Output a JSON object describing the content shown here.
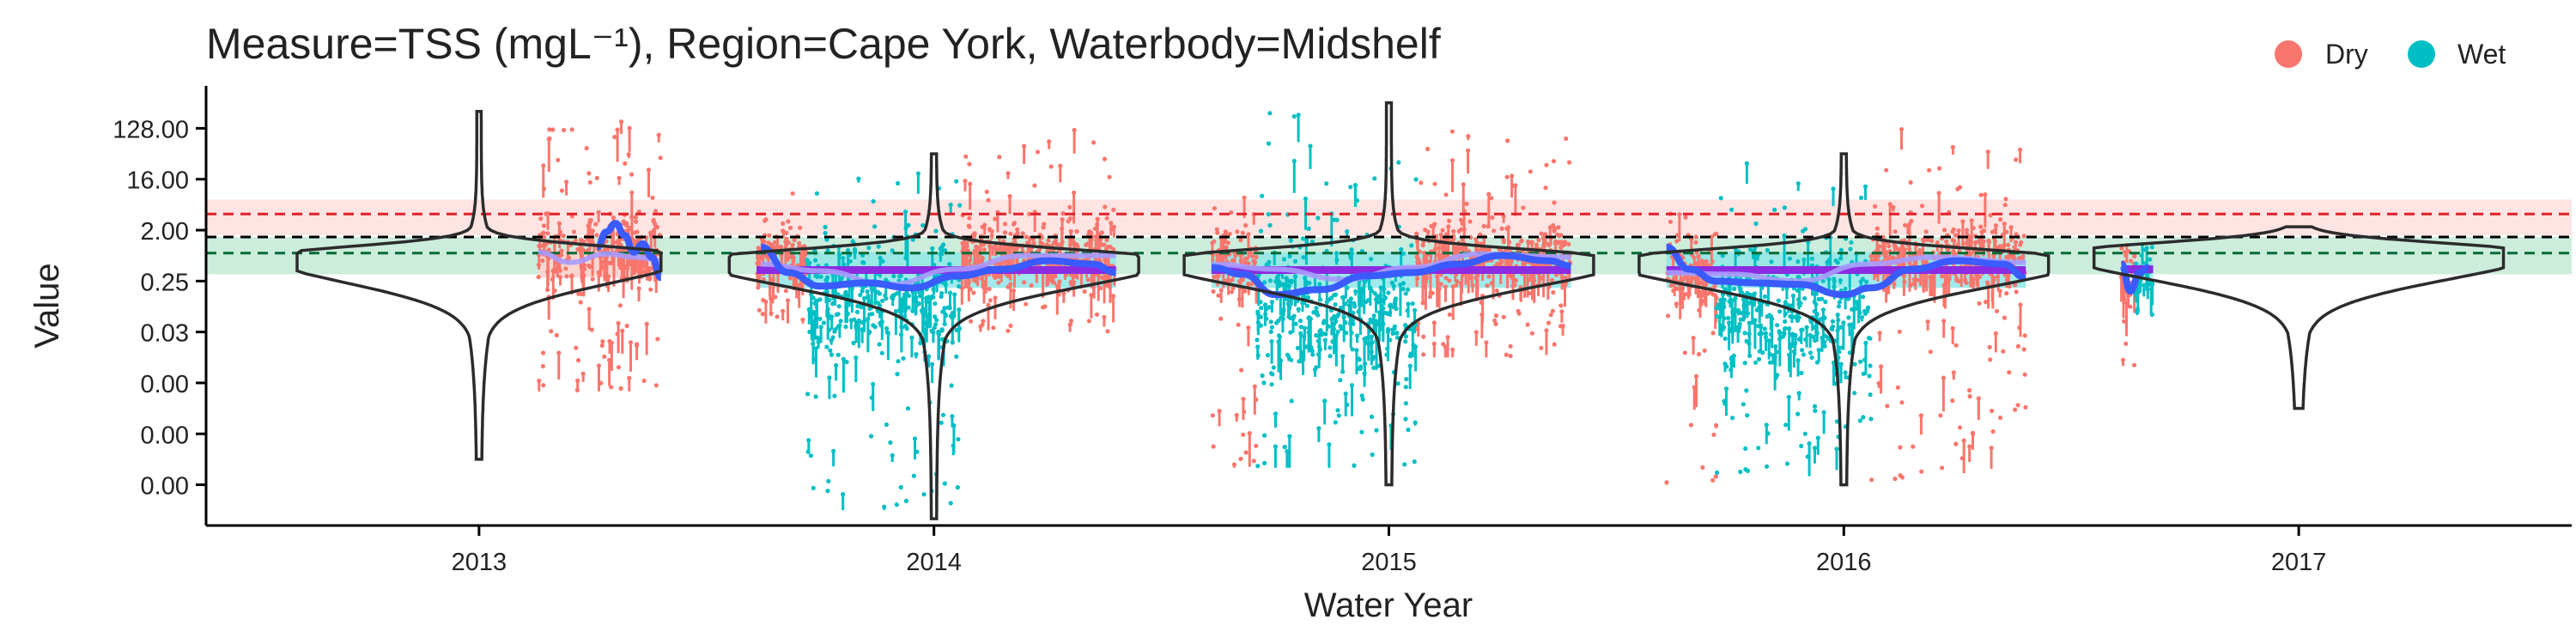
{
  "chart_data": {
    "type": "scatter",
    "title": "Measure=TSS (mgL⁻¹), Region=Cape York, Waterbody=Midshelf",
    "xlabel": "Water Year",
    "ylabel": "Value",
    "y_scale": "log2",
    "x_ticks": [
      "2013",
      "2014",
      "2015",
      "2016",
      "2017"
    ],
    "y_ticks": [
      "128.00",
      "16.00",
      "2.00",
      "0.25",
      "0.03",
      "0.00",
      "0.00",
      "0.00"
    ],
    "y_tick_log2": [
      7,
      4,
      1,
      -2,
      -5,
      -8,
      -11,
      -14
    ],
    "xlim": [
      2012.4,
      2017.6
    ],
    "ylim_log2": [
      -16.4,
      9.5
    ],
    "legend": {
      "position": "top-right",
      "entries": [
        {
          "label": "Dry",
          "color": "#F8766D"
        },
        {
          "label": "Wet",
          "color": "#00BFC4"
        }
      ]
    },
    "reference_bands": [
      {
        "color": "#F8766D",
        "line_value_log2": 1.95,
        "band_log2": [
          0.7,
          2.8
        ]
      },
      {
        "color": "#00A550",
        "line_value_log2": -0.35,
        "band_log2": [
          -1.6,
          0.6
        ]
      }
    ],
    "reference_line_black_log2": 0.6,
    "series": [
      {
        "name": "Dry",
        "color": "#F8766D",
        "clusters": [
          {
            "year": 2013,
            "x_from": 2013.13,
            "x_to": 2013.4,
            "center_log2": -0.2,
            "spread_log2": 1.6,
            "max_log2": 7.5,
            "min_log2": -8.5
          },
          {
            "year": 2014,
            "x_from": 2013.61,
            "x_to": 2013.72,
            "center_log2": -0.5,
            "spread_log2": 1.3,
            "max_log2": 3.5,
            "min_log2": -4.5
          },
          {
            "year": 2014,
            "x_from": 2014.06,
            "x_to": 2014.4,
            "center_log2": -0.3,
            "spread_log2": 1.6,
            "max_log2": 7.2,
            "min_log2": -5.0
          },
          {
            "year": 2015,
            "x_from": 2014.61,
            "x_to": 2014.71,
            "center_log2": -1.0,
            "spread_log2": 1.8,
            "max_log2": 3.0,
            "min_log2": -13.0
          },
          {
            "year": 2015,
            "x_from": 2015.06,
            "x_to": 2015.4,
            "center_log2": -0.4,
            "spread_log2": 1.6,
            "max_log2": 7.0,
            "min_log2": -6.5
          },
          {
            "year": 2016,
            "x_from": 2015.61,
            "x_to": 2015.72,
            "center_log2": -1.5,
            "spread_log2": 2.0,
            "max_log2": 2.0,
            "min_log2": -14.0
          },
          {
            "year": 2016,
            "x_from": 2016.06,
            "x_to": 2016.4,
            "center_log2": -0.5,
            "spread_log2": 1.6,
            "max_log2": 7.0,
            "min_log2": -14.0
          },
          {
            "year": 2017,
            "x_from": 2016.61,
            "x_to": 2016.64,
            "center_log2": -1.8,
            "spread_log2": 1.5,
            "max_log2": 0.5,
            "min_log2": -7.0
          }
        ]
      },
      {
        "name": "Wet",
        "color": "#00BFC4",
        "clusters": [
          {
            "year": 2014,
            "x_from": 2013.72,
            "x_to": 2014.06,
            "center_log2": -3.0,
            "spread_log2": 3.0,
            "max_log2": 4.5,
            "min_log2": -15.5
          },
          {
            "year": 2015,
            "x_from": 2014.71,
            "x_to": 2015.06,
            "center_log2": -3.5,
            "spread_log2": 3.2,
            "max_log2": 8.0,
            "min_log2": -13.0
          },
          {
            "year": 2016,
            "x_from": 2015.72,
            "x_to": 2016.06,
            "center_log2": -3.5,
            "spread_log2": 3.0,
            "max_log2": 5.0,
            "min_log2": -13.5
          },
          {
            "year": 2017,
            "x_from": 2016.64,
            "x_to": 2016.68,
            "center_log2": -1.5,
            "spread_log2": 1.2,
            "max_log2": 0.5,
            "min_log2": -4.0
          }
        ]
      }
    ],
    "year_boxes": [
      {
        "year": 2013,
        "x_from": 2013.13,
        "x_to": 2013.4,
        "median_log2": -1.0,
        "q1_log2": -1.8,
        "q3_log2": -0.2,
        "fill": "#FFD1CC"
      },
      {
        "year": 2014,
        "x_from": 2013.61,
        "x_to": 2014.4,
        "median_log2": -1.35,
        "q1_log2": -2.4,
        "q3_log2": -0.3,
        "fill": "#8FE6E8"
      },
      {
        "year": 2015,
        "x_from": 2014.61,
        "x_to": 2015.4,
        "median_log2": -1.35,
        "q1_log2": -2.4,
        "q3_log2": -0.3,
        "fill": "#8FE6E8"
      },
      {
        "year": 2016,
        "x_from": 2015.61,
        "x_to": 2016.4,
        "median_log2": -1.35,
        "q1_log2": -2.4,
        "q3_log2": -0.3,
        "fill": "#8FE6E8"
      },
      {
        "year": 2017,
        "x_from": 2016.61,
        "x_to": 2016.68,
        "median_log2": -1.3,
        "q1_log2": -1.8,
        "q3_log2": -0.9,
        "fill": "#8FE6E8"
      }
    ],
    "medians": [
      {
        "year": 2014,
        "x_from": 2013.61,
        "x_to": 2014.4,
        "value_log2": -1.35
      },
      {
        "year": 2015,
        "x_from": 2014.61,
        "x_to": 2015.4,
        "value_log2": -1.35
      },
      {
        "year": 2016,
        "x_from": 2015.61,
        "x_to": 2016.4,
        "value_log2": -1.35
      },
      {
        "year": 2017,
        "x_from": 2016.61,
        "x_to": 2016.68,
        "value_log2": -1.3
      }
    ],
    "trend_dark": [
      {
        "year": 2013,
        "points": [
          [
            2013.26,
            0
          ],
          [
            2013.28,
            0.9
          ],
          [
            2013.3,
            1.4
          ],
          [
            2013.32,
            0.7
          ],
          [
            2013.34,
            -0.3
          ],
          [
            2013.36,
            0.2
          ],
          [
            2013.38,
            -0.6
          ],
          [
            2013.4,
            -1.8
          ]
        ]
      },
      {
        "year": 2014,
        "points": [
          [
            2013.62,
            0
          ],
          [
            2013.68,
            -1.5
          ],
          [
            2013.75,
            -2.3
          ],
          [
            2013.85,
            -2.1
          ],
          [
            2013.95,
            -2.4
          ],
          [
            2014.05,
            -1.7
          ],
          [
            2014.15,
            -1.3
          ],
          [
            2014.25,
            -0.8
          ],
          [
            2014.35,
            -1.0
          ],
          [
            2014.4,
            -1.5
          ]
        ]
      },
      {
        "year": 2015,
        "points": [
          [
            2014.61,
            -1.2
          ],
          [
            2014.68,
            -1.6
          ],
          [
            2014.75,
            -2.8
          ],
          [
            2014.85,
            -2.5
          ],
          [
            2014.95,
            -1.7
          ],
          [
            2015.05,
            -1.5
          ],
          [
            2015.15,
            -1.0
          ],
          [
            2015.25,
            -0.5
          ],
          [
            2015.35,
            -0.8
          ],
          [
            2015.4,
            -1.1
          ]
        ]
      },
      {
        "year": 2016,
        "points": [
          [
            2015.61,
            0
          ],
          [
            2015.66,
            -1.3
          ],
          [
            2015.72,
            -2.0
          ],
          [
            2015.8,
            -2.1
          ],
          [
            2015.9,
            -2.2
          ],
          [
            2016.0,
            -2.8
          ],
          [
            2016.06,
            -2.4
          ],
          [
            2016.15,
            -1.3
          ],
          [
            2016.25,
            -0.8
          ],
          [
            2016.35,
            -1.0
          ],
          [
            2016.4,
            -1.8
          ]
        ]
      },
      {
        "year": 2017,
        "points": [
          [
            2016.61,
            -1.0
          ],
          [
            2016.63,
            -2.6
          ],
          [
            2016.65,
            -1.5
          ],
          [
            2016.67,
            -1.2
          ]
        ]
      }
    ],
    "trend_light": [
      {
        "year": 2013,
        "points": [
          [
            2013.13,
            -0.3
          ],
          [
            2013.2,
            -0.9
          ],
          [
            2013.28,
            -0.4
          ],
          [
            2013.35,
            -0.6
          ],
          [
            2013.4,
            -0.8
          ]
        ]
      },
      {
        "year": 2014,
        "points": [
          [
            2013.62,
            -1.0
          ],
          [
            2013.75,
            -1.4
          ],
          [
            2013.9,
            -2.2
          ],
          [
            2014.05,
            -1.3
          ],
          [
            2014.2,
            -0.5
          ],
          [
            2014.4,
            -0.5
          ]
        ]
      },
      {
        "year": 2015,
        "points": [
          [
            2014.61,
            -1.0
          ],
          [
            2014.75,
            -1.3
          ],
          [
            2014.9,
            -1.9
          ],
          [
            2015.05,
            -1.2
          ],
          [
            2015.2,
            -0.4
          ],
          [
            2015.4,
            -0.6
          ]
        ]
      },
      {
        "year": 2016,
        "points": [
          [
            2015.61,
            -1.5
          ],
          [
            2015.75,
            -1.6
          ],
          [
            2015.9,
            -2.0
          ],
          [
            2016.05,
            -1.0
          ],
          [
            2016.2,
            -0.6
          ],
          [
            2016.4,
            -0.9
          ]
        ]
      }
    ],
    "densities": [
      {
        "year": 2013,
        "center_log2": -0.3,
        "peak_log2": -0.5,
        "min_log2": -12.5,
        "max_log2": 8.0,
        "half_width_years": 0.4
      },
      {
        "year": 2014,
        "center_log2": -0.6,
        "peak_log2": -0.7,
        "min_log2": -16.0,
        "max_log2": 5.5,
        "half_width_years": 0.45
      },
      {
        "year": 2015,
        "center_log2": -0.6,
        "peak_log2": -0.7,
        "min_log2": -14.0,
        "max_log2": 8.5,
        "half_width_years": 0.45
      },
      {
        "year": 2016,
        "center_log2": -0.6,
        "peak_log2": -0.7,
        "min_log2": -14.0,
        "max_log2": 5.5,
        "half_width_years": 0.45
      },
      {
        "year": 2017,
        "center_log2": -0.4,
        "peak_log2": -0.3,
        "min_log2": -9.5,
        "max_log2": 1.2,
        "half_width_years": 0.45
      }
    ]
  }
}
